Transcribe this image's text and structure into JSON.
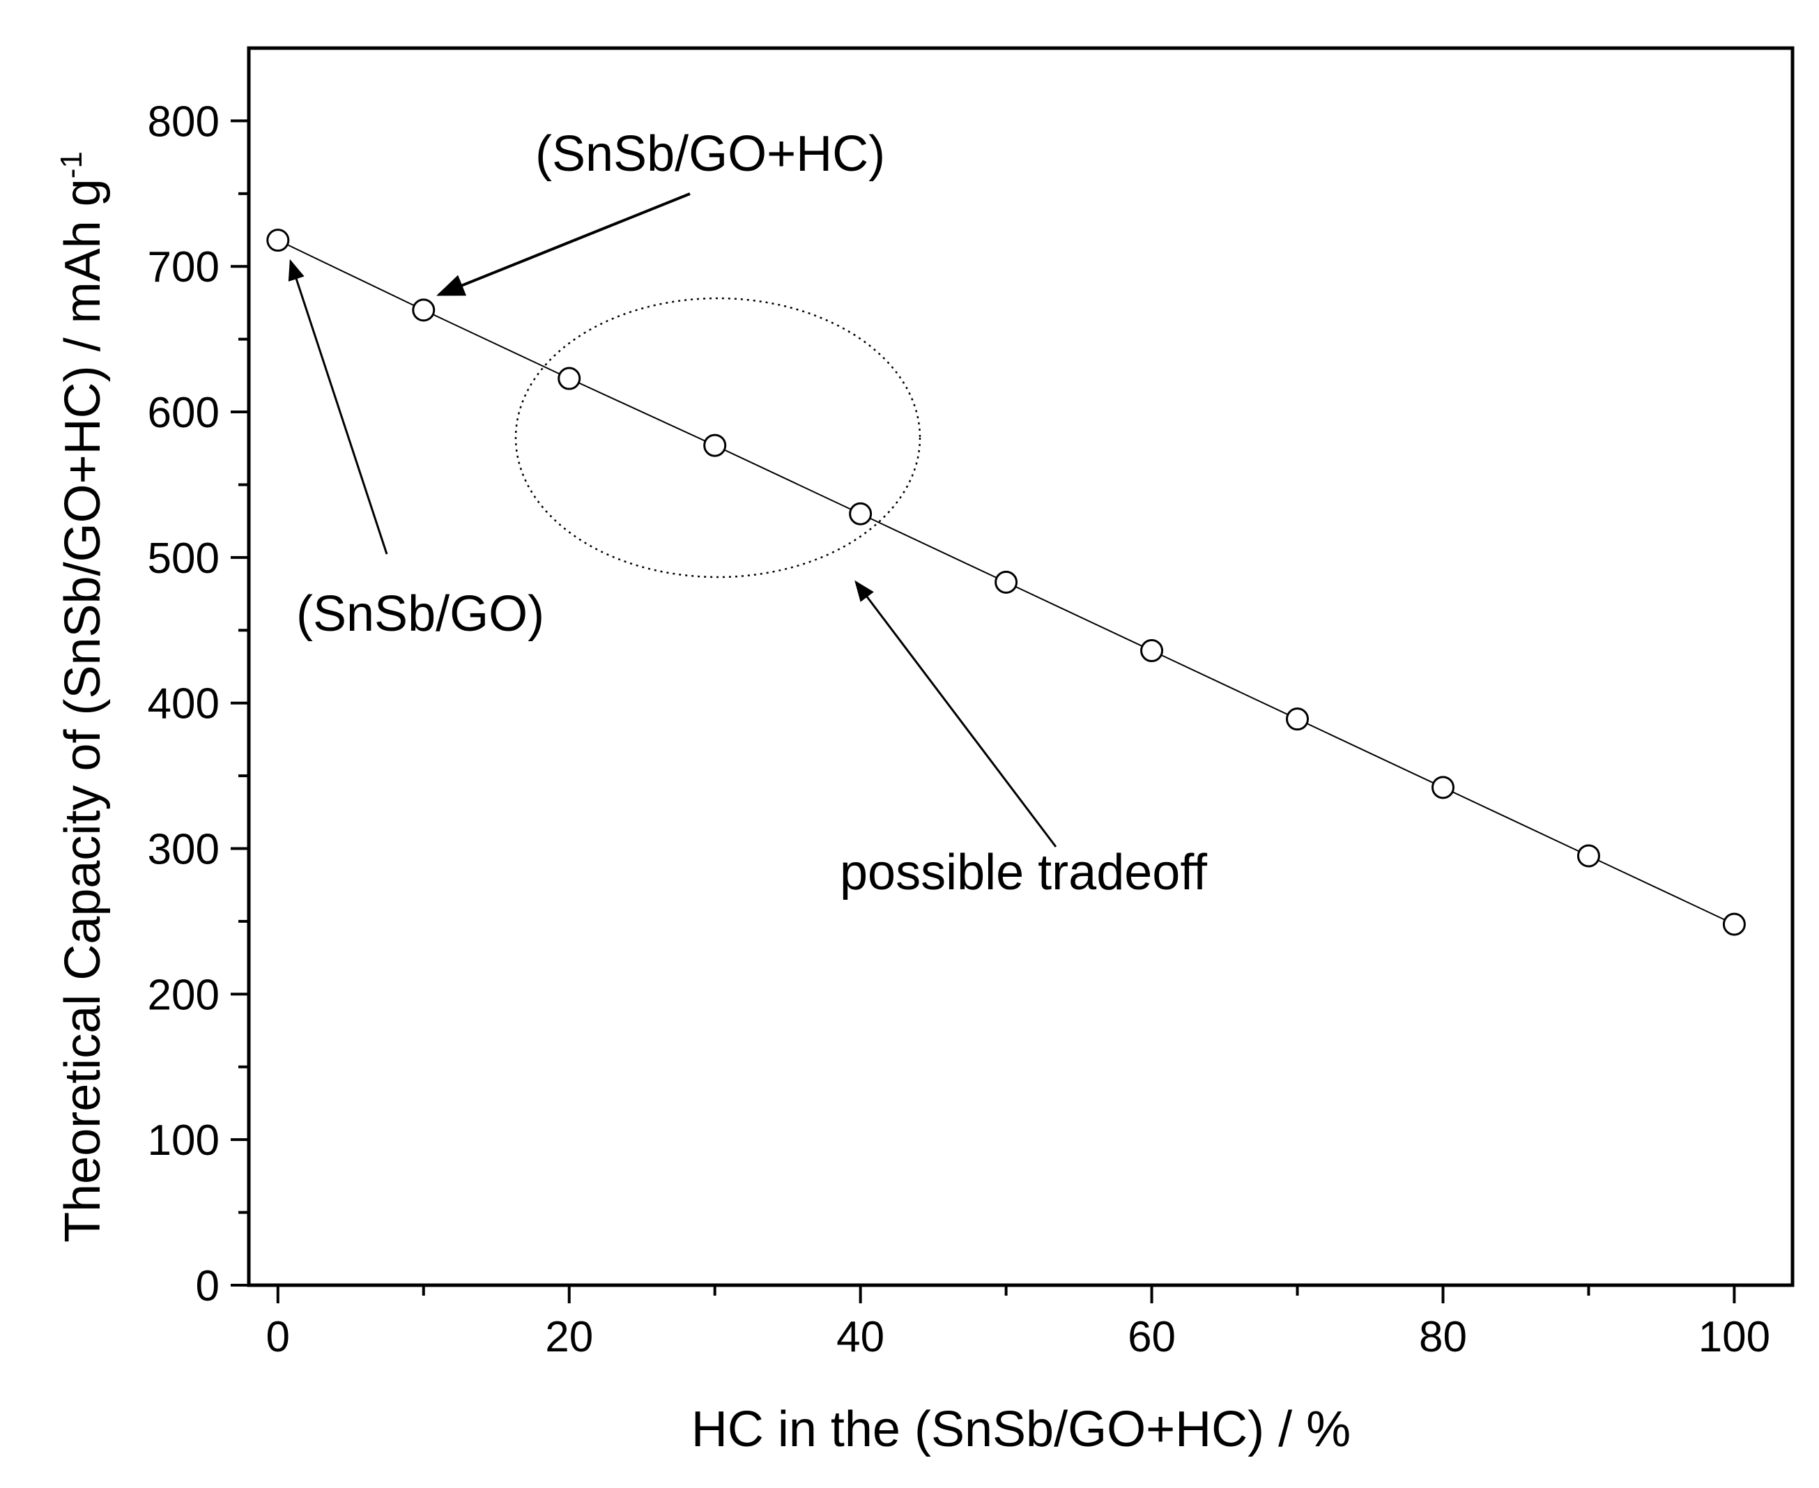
{
  "chart_data": {
    "type": "line",
    "title": "",
    "xlabel": "HC in the (SnSb/GO+HC) / %",
    "ylabel_main": "Theoretical Capacity of (SnSb/GO+HC) / mAh g",
    "ylabel_superscript": "-1",
    "xlim": [
      -2,
      104
    ],
    "ylim": [
      0,
      850
    ],
    "x_ticks": [
      0,
      20,
      40,
      60,
      80,
      100
    ],
    "y_ticks": [
      0,
      100,
      200,
      300,
      400,
      500,
      600,
      700,
      800
    ],
    "x_tick_labels": [
      "0",
      "20",
      "40",
      "60",
      "80",
      "100"
    ],
    "y_tick_labels": [
      "0",
      "100",
      "200",
      "300",
      "400",
      "500",
      "600",
      "700",
      "800"
    ],
    "grid": false,
    "legend": "none",
    "marker": "open-circle",
    "series": [
      {
        "x": [
          0,
          10,
          20,
          30,
          40,
          50,
          60,
          70,
          80,
          90,
          100
        ],
        "y": [
          718,
          670,
          623,
          577,
          530,
          483,
          436,
          389,
          342,
          295,
          248
        ]
      }
    ],
    "annotations": {
      "snsb_go_hc": "(SnSb/GO+HC)",
      "snsb_go": "(SnSb/GO)",
      "tradeoff": "possible tradeoff"
    }
  }
}
